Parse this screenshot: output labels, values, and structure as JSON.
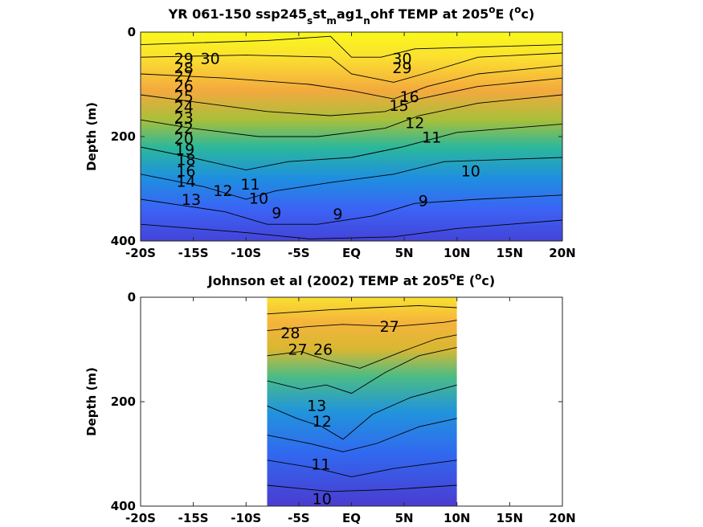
{
  "chart_data": [
    {
      "type": "contour",
      "title_parts": [
        "YR 061-150 ssp245",
        "s",
        "st",
        "m",
        "ag1",
        "n",
        "ohf TEMP at 205",
        "o",
        "E (",
        "o",
        "c)"
      ],
      "ylabel": "Depth (m)",
      "xlim": [
        -20,
        20
      ],
      "ylim": [
        0,
        400
      ],
      "x_data_range": [
        -20,
        20
      ],
      "x_ticks": [
        -20,
        -15,
        -10,
        -5,
        0,
        5,
        10,
        15,
        20
      ],
      "x_tick_labels": [
        "-20S",
        "-15S",
        "-10S",
        "-5S",
        "EQ",
        "5N",
        "10N",
        "15N",
        "20N"
      ],
      "y_ticks": [
        0,
        200,
        400
      ],
      "y_tick_labels": [
        "0",
        "200",
        "400"
      ],
      "colormap": "parula",
      "contour_labels": [
        {
          "text": "30",
          "x": -13.4,
          "y": 50
        },
        {
          "text": "29",
          "x": -15.9,
          "y": 50
        },
        {
          "text": "28",
          "x": -15.9,
          "y": 68
        },
        {
          "text": "27",
          "x": -15.9,
          "y": 83
        },
        {
          "text": "26",
          "x": -15.9,
          "y": 102
        },
        {
          "text": "25",
          "x": -15.9,
          "y": 122
        },
        {
          "text": "24",
          "x": -15.9,
          "y": 142
        },
        {
          "text": "23",
          "x": -15.9,
          "y": 163
        },
        {
          "text": "22",
          "x": -15.9,
          "y": 183
        },
        {
          "text": "20",
          "x": -15.9,
          "y": 203
        },
        {
          "text": "19",
          "x": -15.8,
          "y": 224
        },
        {
          "text": "18",
          "x": -15.7,
          "y": 244
        },
        {
          "text": "16",
          "x": -15.7,
          "y": 265
        },
        {
          "text": "14",
          "x": -15.7,
          "y": 285
        },
        {
          "text": "13",
          "x": -15.2,
          "y": 320
        },
        {
          "text": "12",
          "x": -12.2,
          "y": 303
        },
        {
          "text": "11",
          "x": -9.6,
          "y": 291
        },
        {
          "text": "10",
          "x": -8.8,
          "y": 318
        },
        {
          "text": "9",
          "x": -7.1,
          "y": 345
        },
        {
          "text": "9",
          "x": -1.3,
          "y": 348
        },
        {
          "text": "30",
          "x": 4.8,
          "y": 50
        },
        {
          "text": "29",
          "x": 4.8,
          "y": 68
        },
        {
          "text": "15",
          "x": 4.5,
          "y": 140
        },
        {
          "text": "16",
          "x": 5.5,
          "y": 123
        },
        {
          "text": "12",
          "x": 6,
          "y": 173
        },
        {
          "text": "11",
          "x": 7.6,
          "y": 201
        },
        {
          "text": "10",
          "x": 11.3,
          "y": 265
        },
        {
          "text": "9",
          "x": 6.8,
          "y": 322
        }
      ]
    },
    {
      "type": "contour",
      "title_parts": [
        "Johnson et al (2002) TEMP at 205",
        "o",
        "E (",
        "o",
        "c)"
      ],
      "ylabel": "Depth (m)",
      "xlim": [
        -20,
        20
      ],
      "ylim": [
        0,
        400
      ],
      "x_data_range": [
        -8,
        10
      ],
      "x_ticks": [
        -20,
        -15,
        -10,
        -5,
        0,
        5,
        10,
        15,
        20
      ],
      "x_tick_labels": [
        "-20S",
        "-15S",
        "-10S",
        "-5S",
        "EQ",
        "5N",
        "10N",
        "15N",
        "20N"
      ],
      "y_ticks": [
        0,
        200,
        400
      ],
      "y_tick_labels": [
        "0",
        "200",
        "400"
      ],
      "colormap": "parula",
      "contour_labels": [
        {
          "text": "28",
          "x": -5.8,
          "y": 68
        },
        {
          "text": "27",
          "x": -5.1,
          "y": 99
        },
        {
          "text": "26",
          "x": -2.7,
          "y": 99
        },
        {
          "text": "27",
          "x": 3.6,
          "y": 55
        },
        {
          "text": "13",
          "x": -3.3,
          "y": 207
        },
        {
          "text": "12",
          "x": -2.8,
          "y": 237
        },
        {
          "text": "11",
          "x": -2.9,
          "y": 319
        },
        {
          "text": "10",
          "x": -2.8,
          "y": 385
        }
      ]
    }
  ]
}
